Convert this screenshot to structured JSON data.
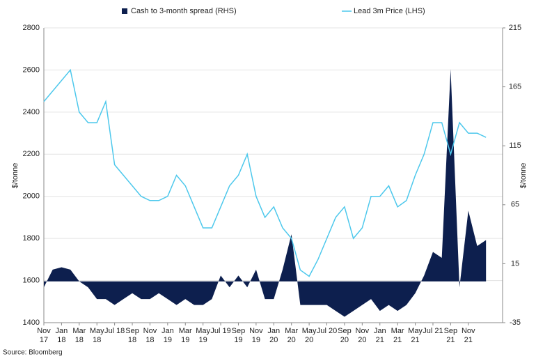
{
  "chart_data": {
    "type": "line",
    "source": "Source: Bloomberg",
    "y_label": "$/tonne",
    "y2_label": "$/tonne",
    "categories": [
      "Nov 17",
      null,
      "Jan 18",
      null,
      "Mar 18",
      null,
      "May 18",
      null,
      "Jul 18",
      null,
      "Sep 18",
      null,
      "Nov 18",
      null,
      "Jan 19",
      null,
      "Mar 19",
      null,
      "May 19",
      null,
      "Jul 19",
      null,
      "Sep 19",
      null,
      "Nov 19",
      null,
      "Jan 20",
      null,
      "Mar 20",
      null,
      "May 20",
      null,
      "Jul 20",
      null,
      "Sep 20",
      null,
      "Nov 20",
      null,
      "Jan 21",
      null,
      "Mar 21",
      null,
      "May 21",
      null,
      "Jul 21",
      null,
      "Sep 21",
      null,
      "Nov 21",
      null,
      null
    ],
    "series": [
      {
        "name": "Cash to 3-month spread (RHS)",
        "kind": "area",
        "axis": "y2",
        "color": "#0d1f4e",
        "values": [
          -5,
          10,
          12,
          10,
          0,
          -5,
          -15,
          -15,
          -20,
          -15,
          -10,
          -15,
          -15,
          -10,
          -15,
          -20,
          -15,
          -20,
          -20,
          -15,
          5,
          -5,
          5,
          -5,
          10,
          -15,
          -15,
          10,
          40,
          -20,
          -20,
          -20,
          -20,
          -25,
          -30,
          -25,
          -20,
          -15,
          -25,
          -20,
          -25,
          -20,
          -10,
          5,
          25,
          20,
          180,
          -5,
          60,
          30,
          35
        ]
      },
      {
        "name": "Lead 3m Price (LHS)",
        "kind": "line",
        "color": "#4dc8ec",
        "values": [
          2450,
          2500,
          2550,
          2600,
          2400,
          2350,
          2350,
          2450,
          2150,
          2100,
          2050,
          2000,
          1980,
          1980,
          2000,
          2100,
          2050,
          1950,
          1850,
          1850,
          1950,
          2050,
          2100,
          2200,
          2000,
          1900,
          1950,
          1850,
          1800,
          1650,
          1620,
          1700,
          1800,
          1900,
          1950,
          1800,
          1850,
          2000,
          2000,
          2050,
          1950,
          1980,
          2100,
          2200,
          2350,
          2350,
          2200,
          2350,
          2300,
          2300,
          2280
        ]
      }
    ],
    "ylim": [
      1400,
      2800
    ],
    "yticks": [
      1400,
      1600,
      1800,
      2000,
      2200,
      2400,
      2600,
      2800
    ],
    "y2lim": [
      -35,
      215
    ],
    "y2ticks": [
      -35,
      15,
      65,
      115,
      165,
      215
    ],
    "grid": true
  }
}
